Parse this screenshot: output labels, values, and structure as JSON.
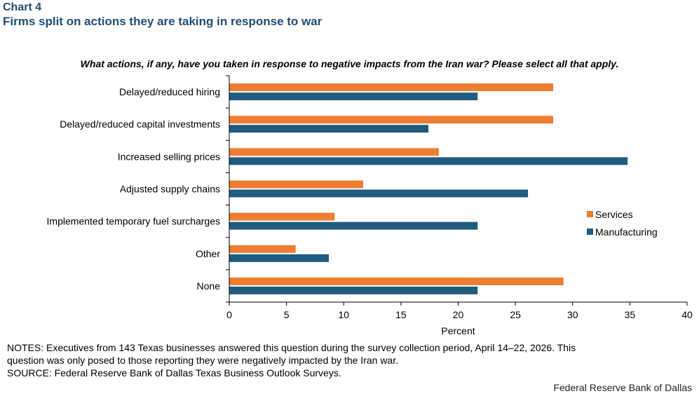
{
  "header": {
    "chart_label": "Chart 4",
    "title": "Firms split on actions they are taking in response to war",
    "question": "What actions, if any, have you taken in response to negative impacts from the Iran war? Please select all that apply."
  },
  "chart_data": {
    "type": "bar",
    "orientation": "horizontal",
    "categories": [
      "Delayed/reduced hiring",
      "Delayed/reduced capital investments",
      "Increased selling prices",
      "Adjusted supply chains",
      "Implemented temporary fuel surcharges",
      "Other",
      "None"
    ],
    "series": [
      {
        "name": "Services",
        "color": "#ed7d31",
        "values": [
          28.3,
          28.3,
          18.3,
          11.7,
          9.2,
          5.8,
          29.2
        ]
      },
      {
        "name": "Manufacturing",
        "color": "#1f5c7f",
        "values": [
          21.7,
          17.4,
          34.8,
          26.1,
          21.7,
          8.7,
          21.7
        ]
      }
    ],
    "xlabel": "Percent",
    "xlim": [
      0,
      40
    ],
    "xticks": [
      0,
      5,
      10,
      15,
      20,
      25,
      30,
      35,
      40
    ],
    "grid": false,
    "legend": "right"
  },
  "footer": {
    "notes_line1": "NOTES: Executives from 143 Texas businesses answered this question during the survey collection period, April 14–22, 2026. This",
    "notes_line2": "question was only posed to those reporting they were negatively impacted by the Iran war.",
    "source": "SOURCE: Federal Reserve Bank of Dallas Texas Business Outlook Surveys.",
    "credit": "Federal Reserve Bank of Dallas"
  }
}
